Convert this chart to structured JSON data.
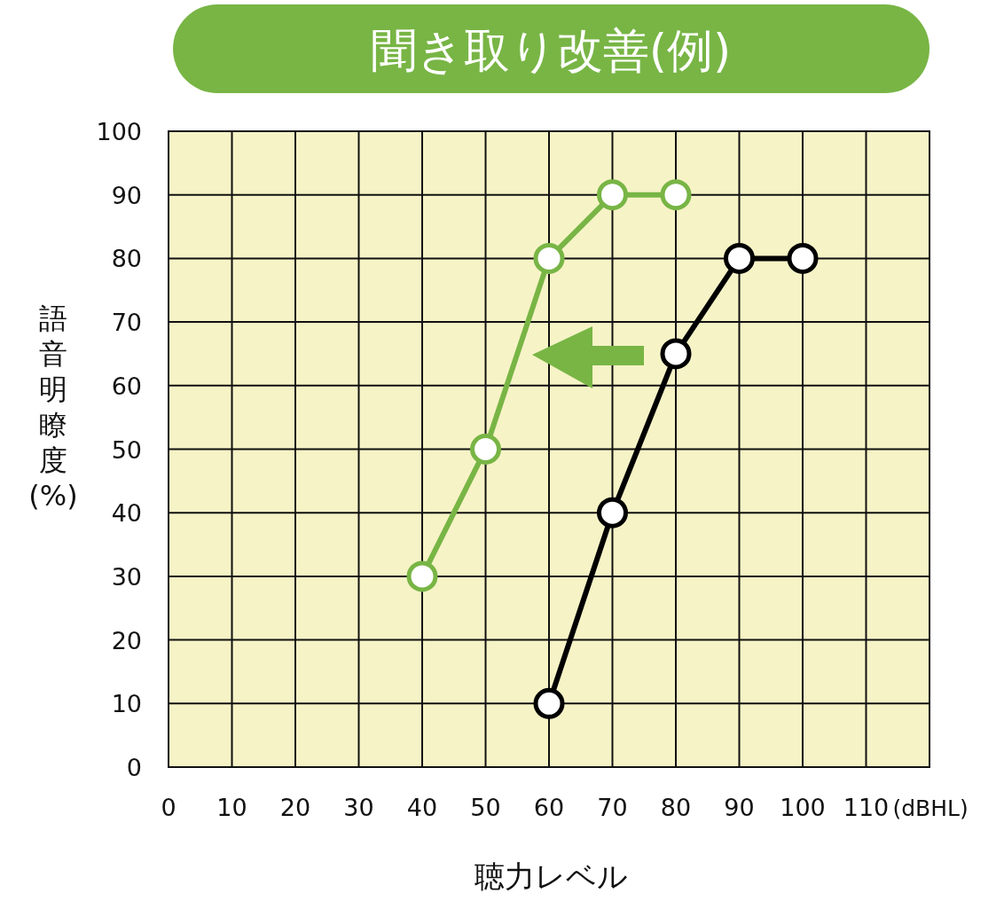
{
  "chart_data": {
    "type": "line",
    "title": "聞き取り改善(例)",
    "xlabel": "聴力レベル",
    "ylabel": "語音明瞭度(%)",
    "annotations": [
      "(dBHL)"
    ],
    "xlim": [
      0,
      120
    ],
    "ylim": [
      0,
      100
    ],
    "xticks": [
      0,
      10,
      20,
      30,
      40,
      50,
      60,
      70,
      80,
      90,
      100,
      110
    ],
    "yticks": [
      0,
      10,
      20,
      30,
      40,
      50,
      60,
      70,
      80,
      90,
      100
    ],
    "grid": true,
    "marker": "circle",
    "line_style": "solid",
    "series": [
      {
        "color": "#78b545",
        "x": [
          40,
          50,
          60,
          70,
          80
        ],
        "values": [
          30,
          50,
          80,
          90,
          90
        ]
      },
      {
        "color": "#000000",
        "x": [
          60,
          70,
          80,
          90,
          100
        ],
        "values": [
          10,
          40,
          65,
          80,
          80
        ]
      }
    ]
  }
}
